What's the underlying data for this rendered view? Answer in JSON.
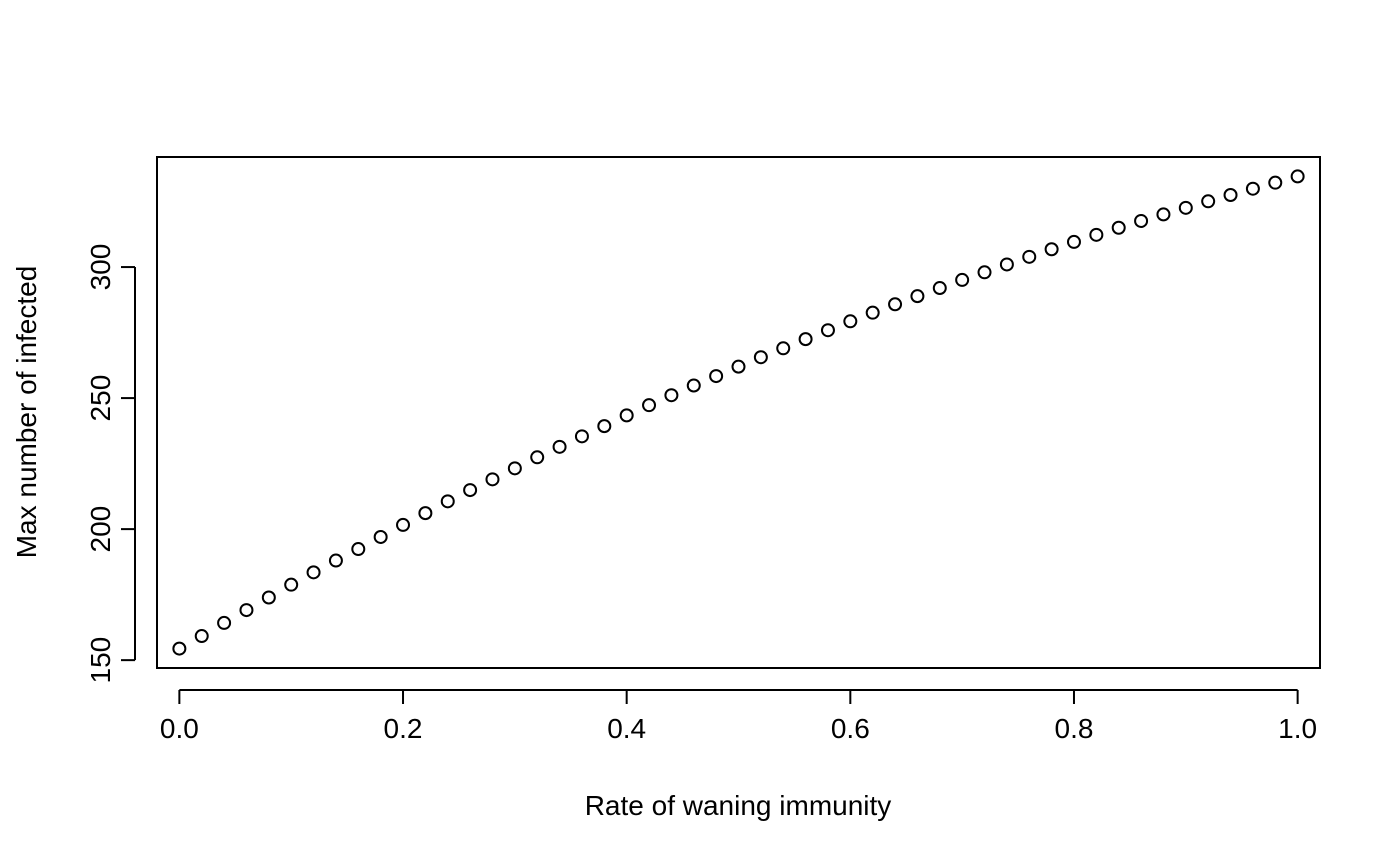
{
  "chart_data": {
    "type": "scatter",
    "title": "",
    "xlabel": "Rate of waning immunity",
    "ylabel": "Max number of infected",
    "xlim": [
      -0.02,
      1.02
    ],
    "ylim": [
      147,
      342
    ],
    "grid": false,
    "legend": "none",
    "x_ticks": [
      0.0,
      0.2,
      0.4,
      0.6,
      0.8,
      1.0
    ],
    "x_tick_labels": [
      "0.0",
      "0.2",
      "0.4",
      "0.6",
      "0.8",
      "1.0"
    ],
    "y_ticks": [
      150,
      200,
      250,
      300
    ],
    "y_tick_labels": [
      "150",
      "200",
      "250",
      "300"
    ],
    "marker": "open-circle",
    "colors": {
      "points": "#000000",
      "axes": "#000000",
      "background": "#ffffff"
    },
    "x": [
      0.0,
      0.02,
      0.04,
      0.06,
      0.08,
      0.1,
      0.12,
      0.14,
      0.16,
      0.18,
      0.2,
      0.22,
      0.24,
      0.26,
      0.28,
      0.3,
      0.32,
      0.34,
      0.36,
      0.38,
      0.4,
      0.42,
      0.44,
      0.46,
      0.48,
      0.5,
      0.52,
      0.54,
      0.56,
      0.58,
      0.6,
      0.62,
      0.64,
      0.66,
      0.68,
      0.7,
      0.72,
      0.74,
      0.76,
      0.78,
      0.8,
      0.82,
      0.84,
      0.86,
      0.88,
      0.9,
      0.92,
      0.94,
      0.96,
      0.98,
      1.0
    ],
    "y": [
      154.4,
      159.2,
      164.2,
      169.1,
      173.9,
      178.8,
      183.5,
      188.0,
      192.4,
      197.0,
      201.6,
      206.1,
      210.6,
      214.9,
      219.0,
      223.2,
      227.4,
      231.4,
      235.4,
      239.3,
      243.4,
      247.3,
      251.1,
      254.8,
      258.4,
      262.0,
      265.6,
      269.0,
      272.5,
      275.9,
      279.3,
      282.6,
      285.8,
      288.9,
      292.0,
      295.1,
      298.0,
      301.0,
      303.9,
      306.8,
      309.6,
      312.3,
      315.0,
      317.6,
      320.1,
      322.6,
      325.1,
      327.5,
      329.9,
      332.2,
      334.6
    ]
  }
}
